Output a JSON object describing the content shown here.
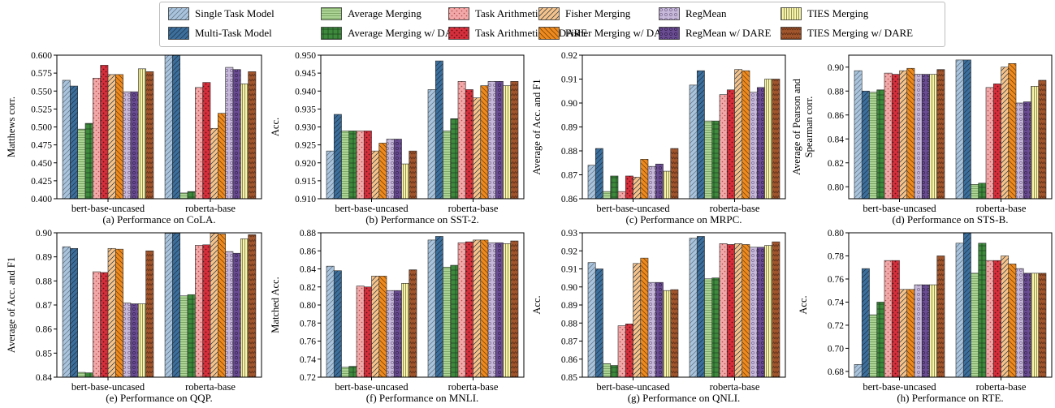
{
  "legend": [
    {
      "name": "Single Task Model",
      "color": "#a9c4dc",
      "pattern": "diag-light"
    },
    {
      "name": "Multi-Task Model",
      "color": "#3c6f9c",
      "pattern": "diag-dark"
    },
    {
      "name": "Average Merging",
      "color": "#acd494",
      "pattern": "hlines"
    },
    {
      "name": "Average Merging w/ DARE",
      "color": "#3d8a3d",
      "pattern": "grid"
    },
    {
      "name": "Task Arithmetic",
      "color": "#f2a8a8",
      "pattern": "dots"
    },
    {
      "name": "Task Arithmetic w/ DARE",
      "color": "#d62f3c",
      "pattern": "dots-dark"
    },
    {
      "name": "Fisher Merging",
      "color": "#f6c38a",
      "pattern": "diag-orange"
    },
    {
      "name": "Fisher Merging w/ DARE",
      "color": "#ee8a1e",
      "pattern": "backdiag"
    },
    {
      "name": "RegMean",
      "color": "#c7b9da",
      "pattern": "circles"
    },
    {
      "name": "RegMean w/ DARE",
      "color": "#6a4c93",
      "pattern": "circles-dark"
    },
    {
      "name": "TIES Merging",
      "color": "#f8f4a8",
      "pattern": "vlines"
    },
    {
      "name": "TIES Merging w/ DARE",
      "color": "#a0552c",
      "pattern": "zigzag"
    }
  ],
  "chart_data": [
    {
      "type": "bar",
      "title": "(a) Performance on CoLA.",
      "ylabel": "Matthews corr.",
      "categories": [
        "bert-base-uncased",
        "roberta-base"
      ],
      "ylim": [
        0.4,
        0.6
      ],
      "yticks": [
        "0.400",
        "0.425",
        "0.450",
        "0.475",
        "0.500",
        "0.525",
        "0.550",
        "0.575",
        "0.600"
      ],
      "values": [
        [
          0.565,
          0.557,
          0.497,
          0.505,
          0.568,
          0.586,
          0.573,
          0.573,
          0.549,
          0.549,
          0.581,
          0.577
        ],
        [
          0.601,
          0.606,
          0.408,
          0.41,
          0.555,
          0.562,
          0.498,
          0.519,
          0.583,
          0.58,
          0.56,
          0.577
        ]
      ]
    },
    {
      "type": "bar",
      "title": "(b) Performance on SST-2.",
      "ylabel": "Acc.",
      "categories": [
        "bert-base-uncased",
        "roberta-base"
      ],
      "ylim": [
        0.91,
        0.95
      ],
      "yticks": [
        "0.910",
        "0.915",
        "0.920",
        "0.925",
        "0.930",
        "0.935",
        "0.940",
        "0.945",
        "0.950"
      ],
      "values": [
        [
          0.9233,
          0.9335,
          0.9289,
          0.9289,
          0.9289,
          0.9289,
          0.9233,
          0.9255,
          0.9266,
          0.9266,
          0.9197,
          0.9233
        ],
        [
          0.9404,
          0.9484,
          0.9289,
          0.9323,
          0.9427,
          0.9404,
          0.9381,
          0.9415,
          0.9427,
          0.9427,
          0.9415,
          0.9427
        ]
      ]
    },
    {
      "type": "bar",
      "title": "(c) Performance on MRPC.",
      "ylabel": "Average of Acc. and F1",
      "categories": [
        "bert-base-uncased",
        "roberta-base"
      ],
      "ylim": [
        0.86,
        0.92
      ],
      "yticks": [
        "0.86",
        "0.87",
        "0.88",
        "0.89",
        "0.90",
        "0.91",
        "0.92"
      ],
      "values": [
        [
          0.874,
          0.881,
          0.863,
          0.8695,
          0.863,
          0.8695,
          0.869,
          0.8765,
          0.8735,
          0.8745,
          0.8715,
          0.881
        ],
        [
          0.9075,
          0.9135,
          0.8925,
          0.8925,
          0.9035,
          0.9055,
          0.914,
          0.9135,
          0.9045,
          0.9065,
          0.91,
          0.91
        ]
      ]
    },
    {
      "type": "bar",
      "title": "(d) Performance on STS-B.",
      "ylabel": "Average of Pearson and Spearman corr.",
      "categories": [
        "bert-base-uncased",
        "roberta-base"
      ],
      "ylim": [
        0.79,
        0.91
      ],
      "yticks": [
        "0.80",
        "0.82",
        "0.84",
        "0.86",
        "0.88",
        "0.90"
      ],
      "values": [
        [
          0.897,
          0.88,
          0.879,
          0.881,
          0.895,
          0.894,
          0.897,
          0.899,
          0.894,
          0.894,
          0.894,
          0.898
        ],
        [
          0.906,
          0.906,
          0.802,
          0.803,
          0.883,
          0.886,
          0.9,
          0.903,
          0.87,
          0.871,
          0.884,
          0.889
        ]
      ]
    },
    {
      "type": "bar",
      "title": "(e) Performance on QQP.",
      "ylabel": "Average of Acc. and F1",
      "categories": [
        "bert-base-uncased",
        "roberta-base"
      ],
      "ylim": [
        0.84,
        0.9
      ],
      "yticks": [
        "0.84",
        "0.85",
        "0.86",
        "0.87",
        "0.88",
        "0.89",
        "0.90"
      ],
      "values": [
        [
          0.8942,
          0.8935,
          0.842,
          0.8418,
          0.8838,
          0.8835,
          0.8935,
          0.8932,
          0.8708,
          0.8705,
          0.8705,
          0.8925
        ],
        [
          0.8998,
          0.8998,
          0.8738,
          0.8743,
          0.8948,
          0.895,
          0.8998,
          0.8995,
          0.8922,
          0.8915,
          0.8975,
          0.8992
        ]
      ]
    },
    {
      "type": "bar",
      "title": "(f) Performance on MNLI.",
      "ylabel": "Matched Acc.",
      "categories": [
        "bert-base-uncased",
        "roberta-base"
      ],
      "ylim": [
        0.72,
        0.88
      ],
      "yticks": [
        "0.72",
        "0.74",
        "0.76",
        "0.78",
        "0.80",
        "0.82",
        "0.84",
        "0.86",
        "0.88"
      ],
      "values": [
        [
          0.843,
          0.838,
          0.731,
          0.732,
          0.821,
          0.82,
          0.832,
          0.832,
          0.816,
          0.816,
          0.824,
          0.839
        ],
        [
          0.872,
          0.876,
          0.842,
          0.844,
          0.869,
          0.87,
          0.872,
          0.872,
          0.869,
          0.869,
          0.868,
          0.871
        ]
      ]
    },
    {
      "type": "bar",
      "title": "(g) Performance on QNLI.",
      "ylabel": "Acc.",
      "categories": [
        "bert-base-uncased",
        "roberta-base"
      ],
      "ylim": [
        0.85,
        0.93
      ],
      "yticks": [
        "0.85",
        "0.86",
        "0.87",
        "0.88",
        "0.89",
        "0.90",
        "0.91",
        "0.92",
        "0.93"
      ],
      "values": [
        [
          0.9135,
          0.91,
          0.8575,
          0.8565,
          0.8785,
          0.8795,
          0.913,
          0.916,
          0.9025,
          0.9025,
          0.898,
          0.8985
        ],
        [
          0.927,
          0.928,
          0.9045,
          0.905,
          0.924,
          0.9235,
          0.924,
          0.9235,
          0.922,
          0.922,
          0.923,
          0.925
        ]
      ]
    },
    {
      "type": "bar",
      "title": "(h) Performance on RTE.",
      "ylabel": "Acc.",
      "categories": [
        "bert-base-uncased",
        "roberta-base"
      ],
      "ylim": [
        0.675,
        0.8
      ],
      "yticks": [
        "0.68",
        "0.70",
        "0.72",
        "0.74",
        "0.76",
        "0.78",
        "0.80"
      ],
      "values": [
        [
          0.686,
          0.769,
          0.729,
          0.74,
          0.776,
          0.776,
          0.751,
          0.751,
          0.755,
          0.755,
          0.755,
          0.78
        ],
        [
          0.791,
          0.8,
          0.765,
          0.791,
          0.776,
          0.776,
          0.78,
          0.773,
          0.769,
          0.765,
          0.765,
          0.765
        ]
      ]
    }
  ]
}
